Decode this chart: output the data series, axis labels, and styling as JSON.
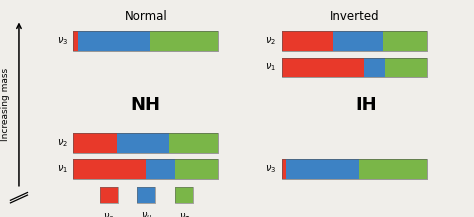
{
  "colors": {
    "red": "#e8392a",
    "blue": "#3d82c4",
    "green": "#7ab648"
  },
  "NH": {
    "nu3": [
      0.03,
      0.5,
      0.47
    ],
    "nu2": [
      0.3,
      0.36,
      0.34
    ],
    "nu1": [
      0.5,
      0.2,
      0.3
    ]
  },
  "IH": {
    "nu2": [
      0.35,
      0.35,
      0.3
    ],
    "nu1": [
      0.57,
      0.14,
      0.29
    ],
    "nu3": [
      0.03,
      0.5,
      0.47
    ]
  },
  "title_NH": "Normal",
  "title_IH": "Inverted",
  "label_NH": "NH",
  "label_IH": "IH",
  "ylabel": "Increasing mass",
  "legend_labels": [
    "$\\nu_e$",
    "$\\nu_\\mu$",
    "$\\nu_\\tau$"
  ],
  "bg_color": "#f0eeea"
}
